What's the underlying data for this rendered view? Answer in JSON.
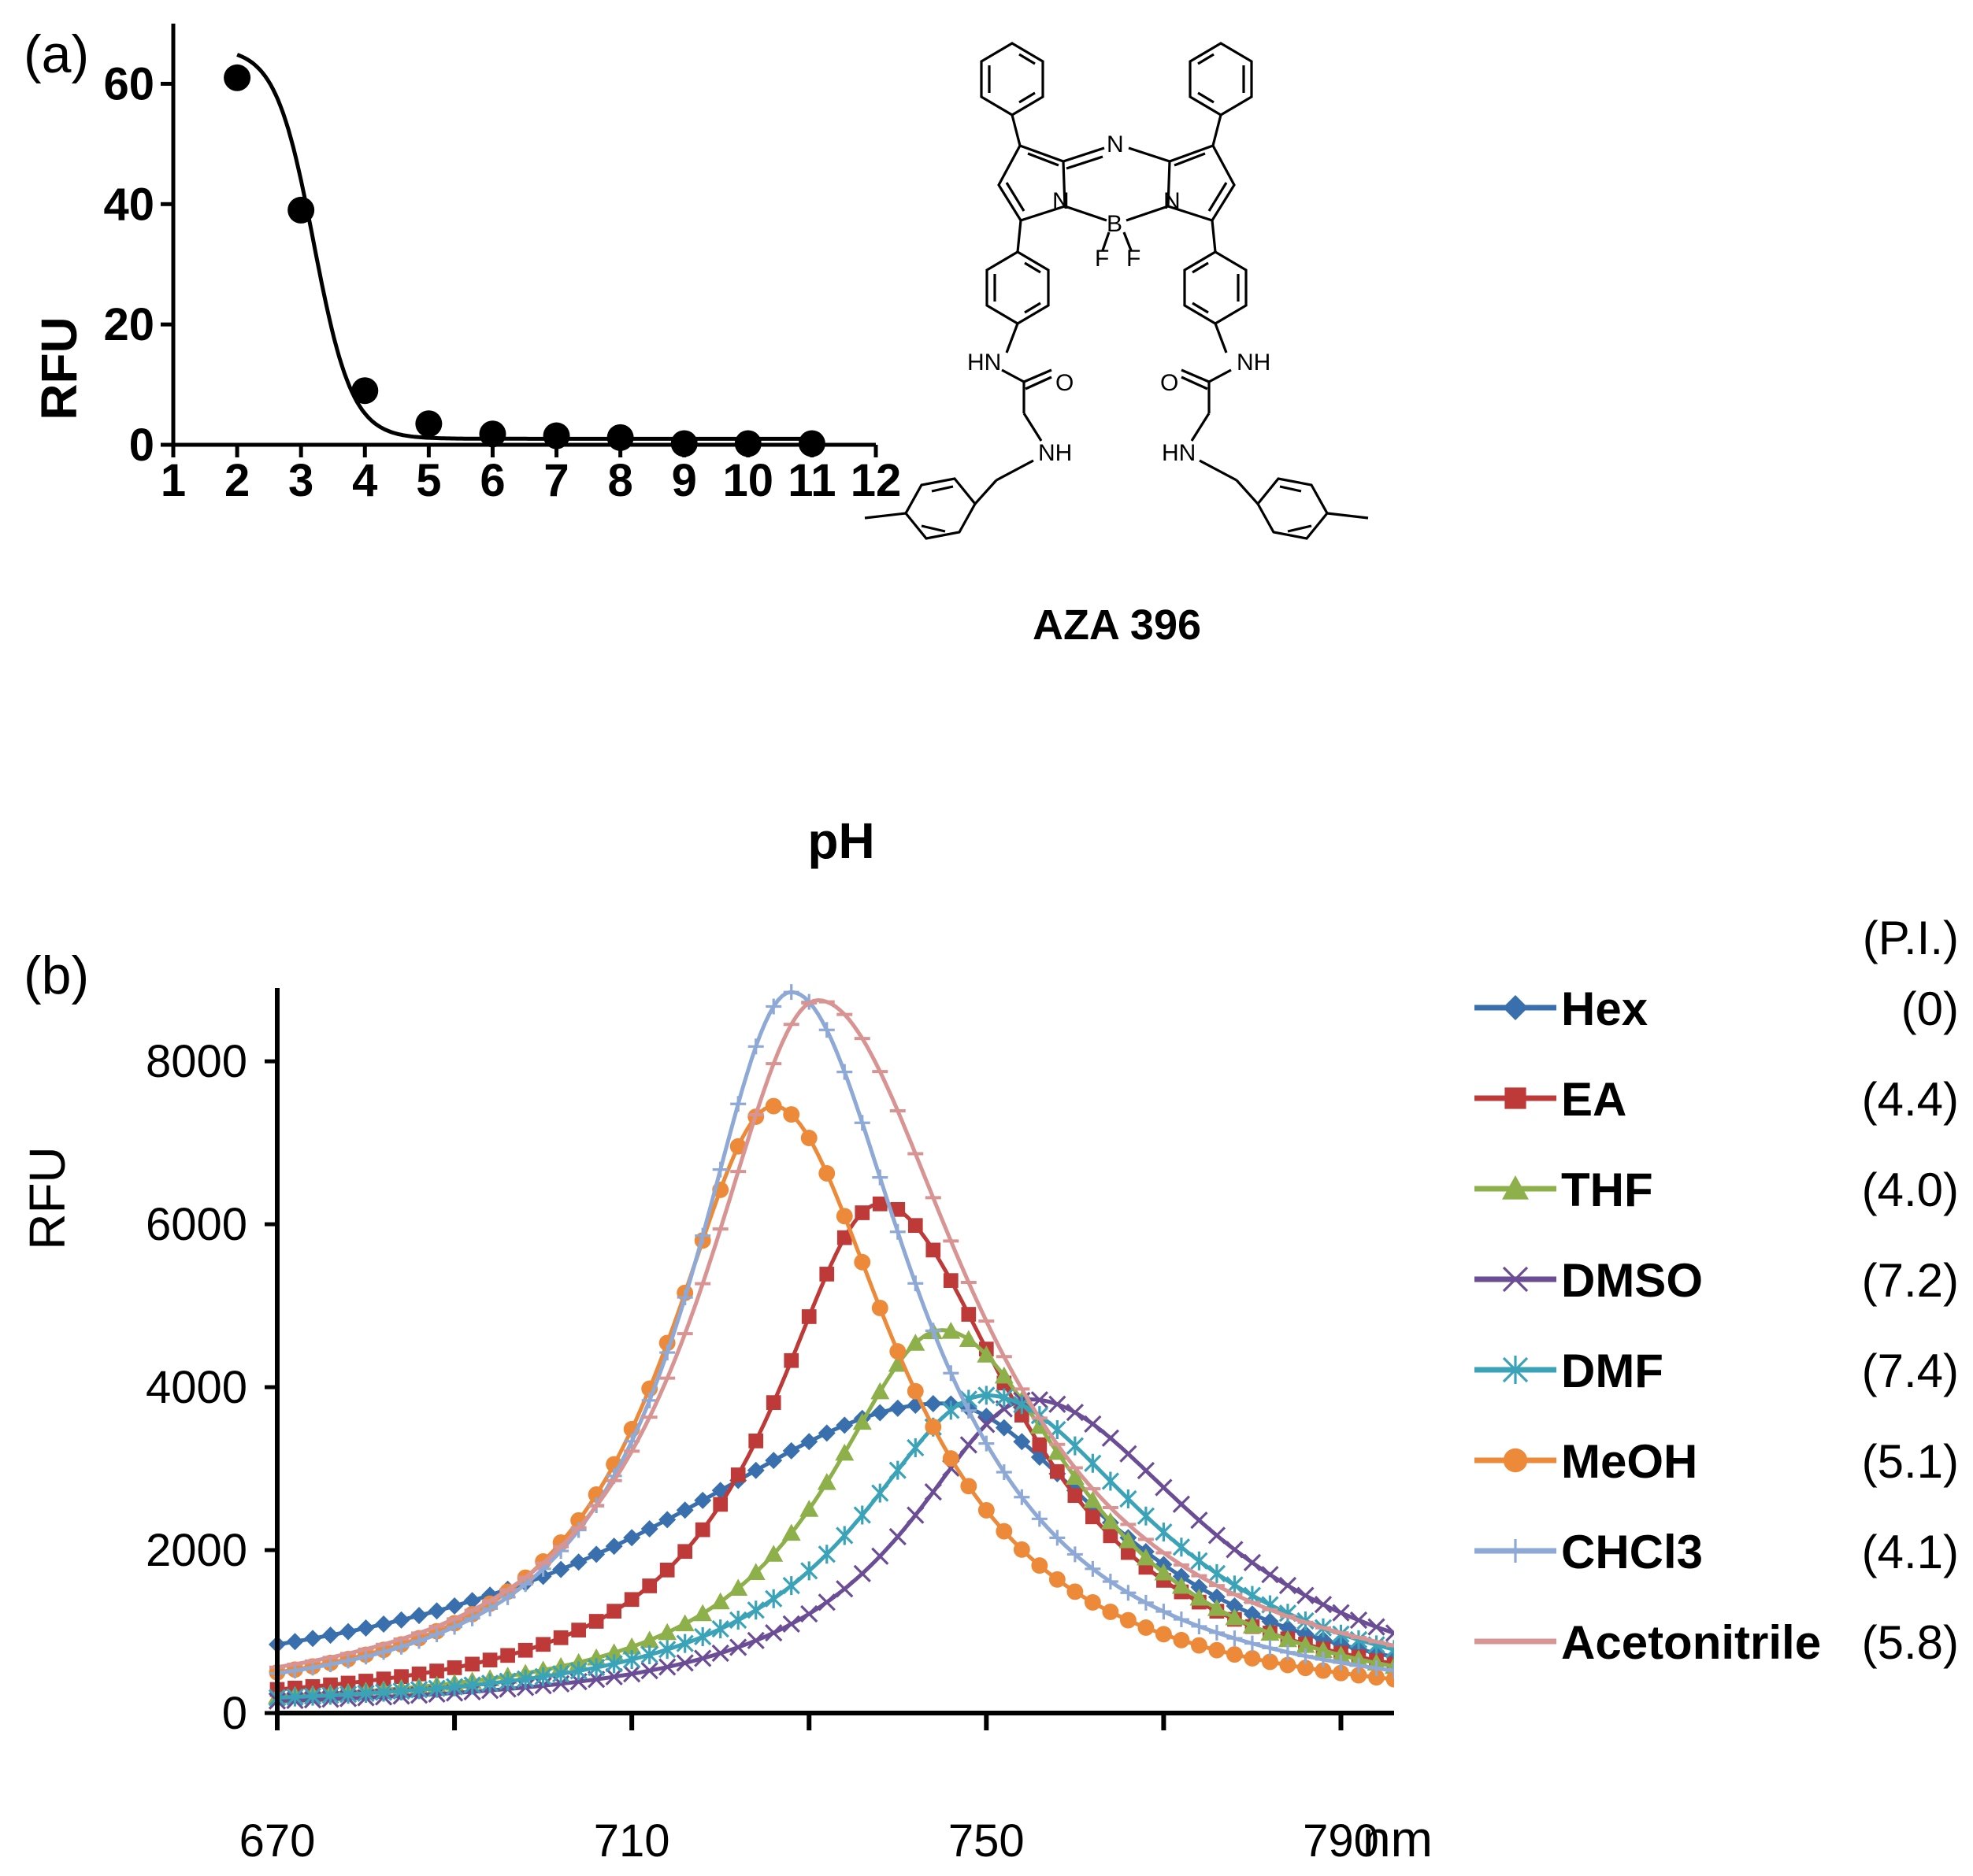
{
  "panel_a_label": "(a)",
  "panel_b_label": "(b)",
  "chart_data": [
    {
      "type": "line",
      "panel": "(a)",
      "title": "",
      "xlabel": "pH",
      "ylabel": "RFU",
      "xlim": [
        1,
        12
      ],
      "ylim": [
        0,
        70
      ],
      "x_ticks": [
        "1",
        "2",
        "3",
        "4",
        "5",
        "6",
        "7",
        "8",
        "9",
        "10",
        "11",
        "12"
      ],
      "y_ticks": [
        "0",
        "20",
        "40",
        "60"
      ],
      "series": [
        {
          "name": "data",
          "x": [
            2,
            3,
            4,
            5,
            6,
            7,
            8,
            9,
            10,
            11
          ],
          "y": [
            61,
            39,
            9,
            3.5,
            1.8,
            1.5,
            1.2,
            0.2,
            0.2,
            0.2
          ]
        }
      ],
      "fit": {
        "type": "sigmoid",
        "bottom": 1.0,
        "top": 66,
        "pKa": 3.2,
        "slope": 1.45
      },
      "compound_name": "AZA 396"
    },
    {
      "type": "line",
      "panel": "(b)",
      "title": "",
      "xlabel": "nm",
      "ylabel": "RFU",
      "xlim": [
        670,
        796
      ],
      "ylim": [
        0,
        8900
      ],
      "x_ticks": [
        "670",
        "710",
        "750",
        "790"
      ],
      "y_ticks": [
        "0",
        "2000",
        "4000",
        "6000",
        "8000"
      ],
      "legend_header": "(P.I.)",
      "series": [
        {
          "name": "Hex",
          "pi": "(0)",
          "color": "#3a6fae",
          "marker": "diamond",
          "peak": 745,
          "amp": 3800,
          "wl": 40,
          "wr": 24,
          "base": 0
        },
        {
          "name": "EA",
          "pi": "(4.4)",
          "color": "#bd3a38",
          "marker": "square",
          "peak": 738,
          "amp": 6250,
          "wl": 15,
          "wr": 19,
          "base": 0
        },
        {
          "name": "THF",
          "pi": "(4.0)",
          "color": "#8db04a",
          "marker": "triangle",
          "peak": 745,
          "amp": 4700,
          "wl": 16,
          "wr": 19,
          "base": 0
        },
        {
          "name": "DMSO",
          "pi": "(7.2)",
          "color": "#6a4d94",
          "marker": "x",
          "peak": 755,
          "amp": 3850,
          "wl": 17,
          "wr": 24,
          "base": 0
        },
        {
          "name": "DMF",
          "pi": "(7.4)",
          "color": "#3ba3b8",
          "marker": "asterisk",
          "peak": 750,
          "amp": 3900,
          "wl": 18,
          "wr": 23,
          "base": 0
        },
        {
          "name": "MeOH",
          "pi": "(5.1)",
          "color": "#ec8a3a",
          "marker": "circle",
          "peak": 726,
          "amp": 7450,
          "wl": 15,
          "wr": 17,
          "base": 0
        },
        {
          "name": "CHCl3",
          "pi": "(4.1)",
          "color": "#8ea9d5",
          "marker": "plus",
          "peak": 728,
          "amp": 8850,
          "wl": 14,
          "wr": 17,
          "base": 0
        },
        {
          "name": "Acetonitrile",
          "pi": "(5.8)",
          "color": "#d89493",
          "marker": "dash",
          "peak": 731,
          "amp": 8750,
          "wl": 16,
          "wr": 21,
          "base": 0
        }
      ]
    }
  ]
}
